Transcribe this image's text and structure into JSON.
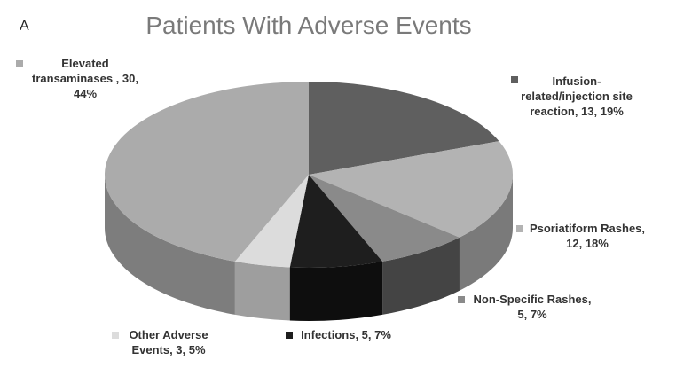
{
  "panel_label": "A",
  "chart_data": {
    "type": "pie",
    "title": "Patients With Adverse Events",
    "slices": [
      {
        "label": "Infusion-related/injection site reaction",
        "count": 13,
        "percent": 19,
        "color": "#5f5f5f",
        "side": "#3b3b3b",
        "label_lines": [
          "Infusion-",
          "related/injection site",
          "reaction, 13, 19%"
        ]
      },
      {
        "label": "Psoriatiform Rashes",
        "count": 12,
        "percent": 18,
        "color": "#b3b3b3",
        "side": "#7a7a7a",
        "label_lines": [
          "Psoriatiform Rashes,",
          "12, 18%"
        ]
      },
      {
        "label": "Non-Specific Rashes",
        "count": 5,
        "percent": 7,
        "color": "#8a8a8a",
        "side": "#444444",
        "label_lines": [
          "Non-Specific  Rashes,",
          "5, 7%"
        ]
      },
      {
        "label": "Infections",
        "count": 5,
        "percent": 7,
        "color": "#1e1e1e",
        "side": "#0e0e0e",
        "label_lines": [
          "Infections, 5, 7%"
        ]
      },
      {
        "label": "Other Adverse Events",
        "count": 3,
        "percent": 5,
        "color": "#dcdcdc",
        "side": "#9e9e9e",
        "label_lines": [
          "Other Adverse",
          "Events, 3, 5%"
        ]
      },
      {
        "label": "Elevated transaminases",
        "count": 30,
        "percent": 44,
        "color": "#ababab",
        "side": "#7d7d7d",
        "label_lines": [
          "Elevated",
          "transaminases , 30,",
          "44%"
        ]
      }
    ]
  }
}
